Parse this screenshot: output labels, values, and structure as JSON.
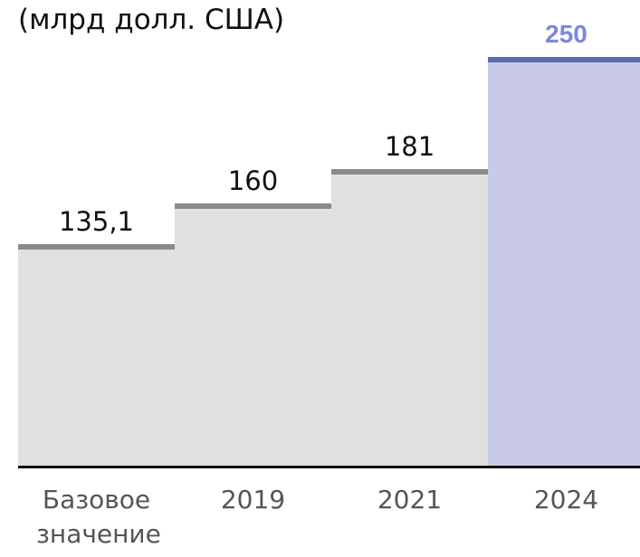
{
  "chart_data": {
    "type": "bar",
    "title": "(млрд долл. США)",
    "categories": [
      "Базовое значение",
      "2019",
      "2021",
      "2024"
    ],
    "values": [
      135.1,
      160,
      181,
      250
    ],
    "value_labels": [
      "135,1",
      "160",
      "181",
      "250"
    ],
    "colors": [
      "#e0e0e0",
      "#e0e0e0",
      "#e0e0e0",
      "#c8cae7"
    ],
    "top_colors": [
      "#8a8a8c",
      "#8a8a8c",
      "#8a8a8c",
      "#5c6ab3"
    ],
    "label_colors": [
      "#111111",
      "#111111",
      "#111111",
      "#7c87de"
    ],
    "ylim": [
      0,
      250
    ]
  }
}
